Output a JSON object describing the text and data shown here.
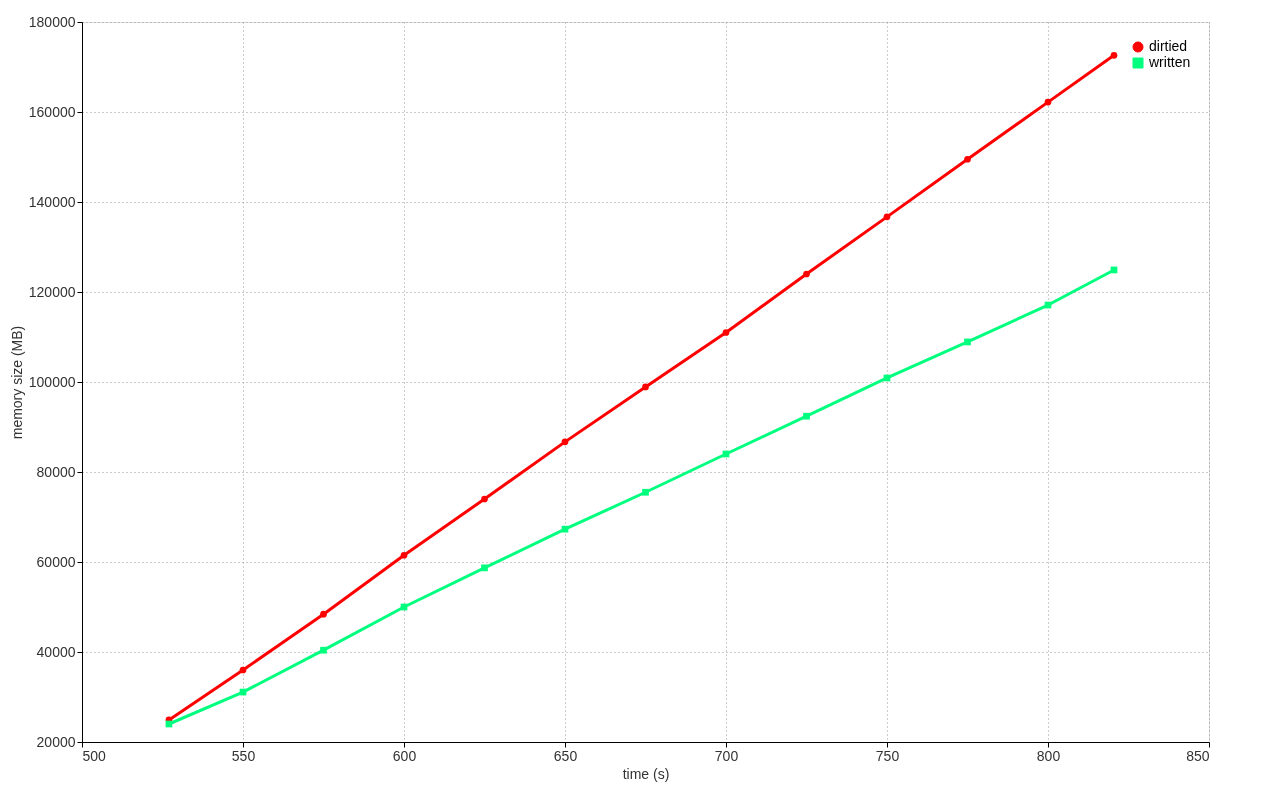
{
  "chart_data": {
    "type": "line",
    "xlabel": "time (s)",
    "ylabel": "memory size (MB)",
    "xlim": [
      500,
      850
    ],
    "xticks": [
      500,
      550,
      600,
      650,
      700,
      750,
      800,
      850
    ],
    "ylim": [
      20000,
      180000
    ],
    "yticks": [
      20000,
      40000,
      60000,
      80000,
      100000,
      120000,
      140000,
      160000,
      180000
    ],
    "grid": true,
    "legend": "top right",
    "x": [
      527,
      550,
      575,
      600,
      625,
      650,
      675,
      700,
      725,
      750,
      775,
      800,
      820.5
    ],
    "series": [
      {
        "name": "dirtied",
        "color": "#ff0000",
        "marker": "circle",
        "values": [
          24900,
          36000,
          48400,
          61500,
          74000,
          86700,
          98900,
          111000,
          124000,
          136700,
          149500,
          162200,
          172600
        ]
      },
      {
        "name": "written",
        "color": "#00ff7f",
        "marker": "square",
        "values": [
          24000,
          31100,
          40400,
          50000,
          58700,
          67300,
          75500,
          84000,
          92400,
          100900,
          108900,
          117100,
          124900
        ]
      }
    ]
  }
}
